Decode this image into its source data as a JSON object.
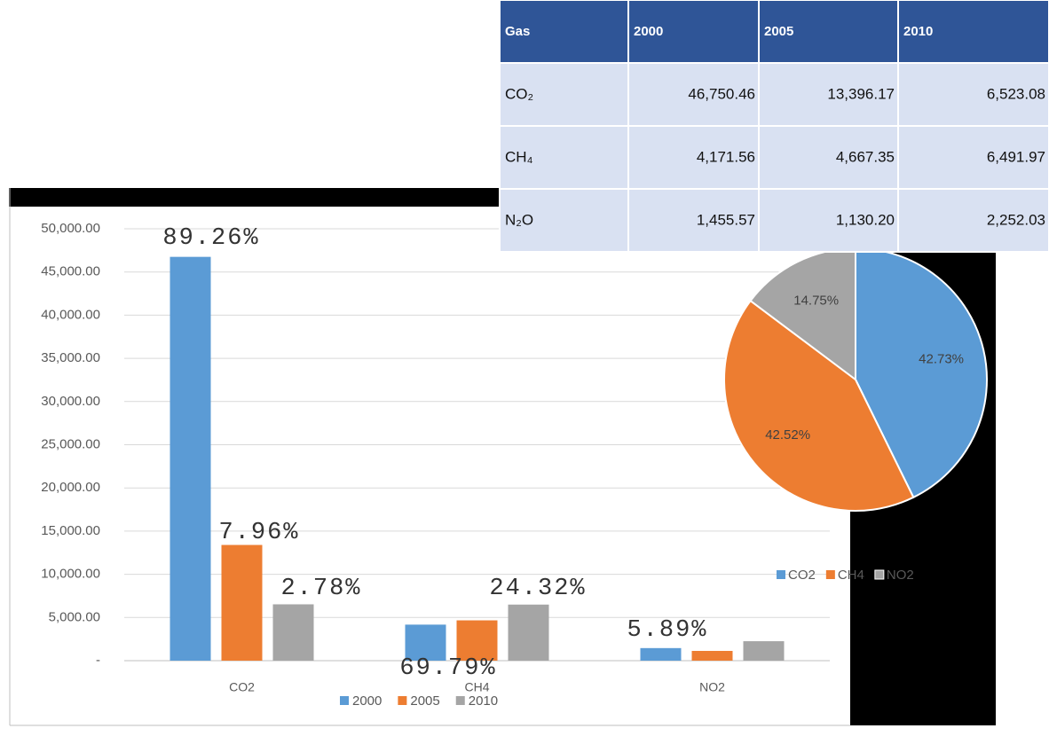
{
  "chart_data": [
    {
      "type": "bar",
      "categories": [
        "CO2",
        "CH4",
        "NO2"
      ],
      "series": [
        {
          "name": "2000",
          "color": "#5b9bd5",
          "values": [
            46750.46,
            4171.56,
            1455.57
          ]
        },
        {
          "name": "2005",
          "color": "#ed7d31",
          "values": [
            13396.17,
            4667.35,
            1130.2
          ]
        },
        {
          "name": "2010",
          "color": "#a5a5a5",
          "values": [
            6523.08,
            6491.97,
            2252.03
          ]
        }
      ],
      "ylim": [
        0,
        50000
      ],
      "yticks": [
        {
          "value": 0,
          "label": "-"
        },
        {
          "value": 5000,
          "label": "5,000.00"
        },
        {
          "value": 10000,
          "label": "10,000.00"
        },
        {
          "value": 15000,
          "label": "15,000.00"
        },
        {
          "value": 20000,
          "label": "20,000.00"
        },
        {
          "value": 25000,
          "label": "25,000.00"
        },
        {
          "value": 30000,
          "label": "30,000.00"
        },
        {
          "value": 35000,
          "label": "35,000.00"
        },
        {
          "value": 40000,
          "label": "40,000.00"
        },
        {
          "value": 45000,
          "label": "45,000.00"
        },
        {
          "value": 50000,
          "label": "50,000.00"
        }
      ],
      "grid": true,
      "annotations": [
        "89.26%",
        "7.96%",
        "2.78%",
        "24.32%",
        "69.79%",
        "5.89%"
      ]
    },
    {
      "type": "pie",
      "categories": [
        "CO2",
        "CH4",
        "NO2"
      ],
      "values": [
        42.73,
        42.52,
        14.75
      ],
      "value_labels": [
        "42.73%",
        "42.52%",
        "14.75%"
      ],
      "colors": [
        "#5b9bd5",
        "#ed7d31",
        "#a5a5a5"
      ]
    }
  ],
  "table": {
    "header": [
      "Gas",
      "2000",
      "2005",
      "2010"
    ],
    "rows": [
      [
        "CO₂",
        "46,750.46",
        "13,396.17",
        "6,523.08"
      ],
      [
        "CH₄",
        "4,171.56",
        "4,667.35",
        "6,491.97"
      ],
      [
        "N₂O",
        "1,455.57",
        "1,130.20",
        "2,252.03"
      ]
    ]
  }
}
